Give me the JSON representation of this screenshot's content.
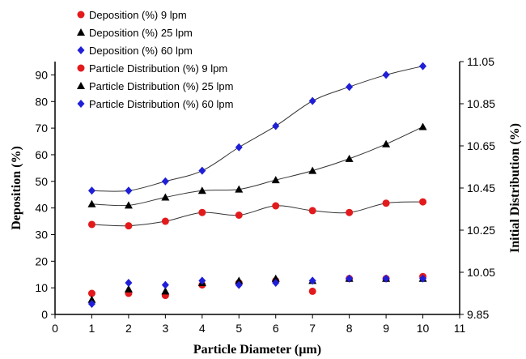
{
  "chart_data": {
    "type": "scatter",
    "xlabel": "Particle Diameter (µm)",
    "ylabel": "Deposition (%)",
    "y2label": "Initial Distribution (%)",
    "xlim": [
      0,
      11
    ],
    "ylim": [
      0,
      95
    ],
    "y2lim": [
      9.85,
      11.05
    ],
    "x_ticks": [
      "0",
      "1",
      "2",
      "3",
      "4",
      "5",
      "6",
      "7",
      "8",
      "9",
      "10",
      "11"
    ],
    "y_ticks": [
      "0",
      "10",
      "20",
      "30",
      "40",
      "50",
      "60",
      "70",
      "80",
      "90"
    ],
    "y2_ticks": [
      "9.85",
      "10.05",
      "10.25",
      "10.45",
      "10.65",
      "10.85",
      "11.05"
    ],
    "grid": false,
    "legend_position": "top-left",
    "colors": {
      "red": "#e31a1c",
      "black": "#000000",
      "blue": "#1f1fd8"
    },
    "series": [
      {
        "name": "Deposition (%) 9 lpm",
        "axis": "left",
        "marker": "circle",
        "color": "#e31a1c",
        "x": [
          1,
          2,
          3,
          4,
          5,
          6,
          7,
          8,
          9,
          10
        ],
        "values": [
          33.8,
          33.3,
          35,
          38.3,
          37.3,
          40.8,
          39,
          38.3,
          41.8,
          42.3
        ]
      },
      {
        "name": "Deposition (%) 25 lpm",
        "axis": "left",
        "marker": "triangle",
        "color": "#000000",
        "x": [
          1,
          2,
          3,
          4,
          5,
          6,
          7,
          8,
          9,
          10
        ],
        "values": [
          41.5,
          41,
          44,
          46.5,
          47,
          50.5,
          54,
          58.5,
          64,
          70.5
        ]
      },
      {
        "name": "Deposition (%) 60 lpm",
        "axis": "left",
        "marker": "diamond",
        "color": "#1f1fd8",
        "x": [
          1,
          2,
          3,
          4,
          5,
          6,
          7,
          8,
          9,
          10
        ],
        "values": [
          46.5,
          46.5,
          50,
          54,
          62.8,
          70.8,
          80.2,
          85.5,
          90,
          93.3
        ]
      },
      {
        "name": "Particle Distribution (%) 9 lpm",
        "axis": "right",
        "marker": "circle",
        "color": "#e31a1c",
        "x": [
          1,
          2,
          3,
          4,
          5,
          6,
          7,
          8,
          9,
          10
        ],
        "values": [
          9.95,
          9.95,
          9.94,
          9.99,
          10.0,
          10.01,
          9.96,
          10.02,
          10.02,
          10.03
        ]
      },
      {
        "name": "Particle Distribution (%) 25 lpm",
        "axis": "right",
        "marker": "triangle",
        "color": "#000000",
        "x": [
          1,
          2,
          3,
          4,
          5,
          6,
          7,
          8,
          9,
          10
        ],
        "values": [
          9.92,
          9.97,
          9.96,
          10.0,
          10.01,
          10.02,
          10.01,
          10.02,
          10.02,
          10.02
        ]
      },
      {
        "name": "Particle Distribution (%) 60 lpm",
        "axis": "right",
        "marker": "diamond",
        "color": "#1f1fd8",
        "x": [
          1,
          2,
          3,
          4,
          5,
          6,
          7,
          8,
          9,
          10
        ],
        "values": [
          9.9,
          10.0,
          9.99,
          10.01,
          9.99,
          10.0,
          10.01,
          10.02,
          10.02,
          10.02
        ]
      }
    ],
    "trendlines": [
      "Deposition (%) 9 lpm",
      "Deposition (%) 25 lpm",
      "Deposition (%) 60 lpm"
    ]
  }
}
